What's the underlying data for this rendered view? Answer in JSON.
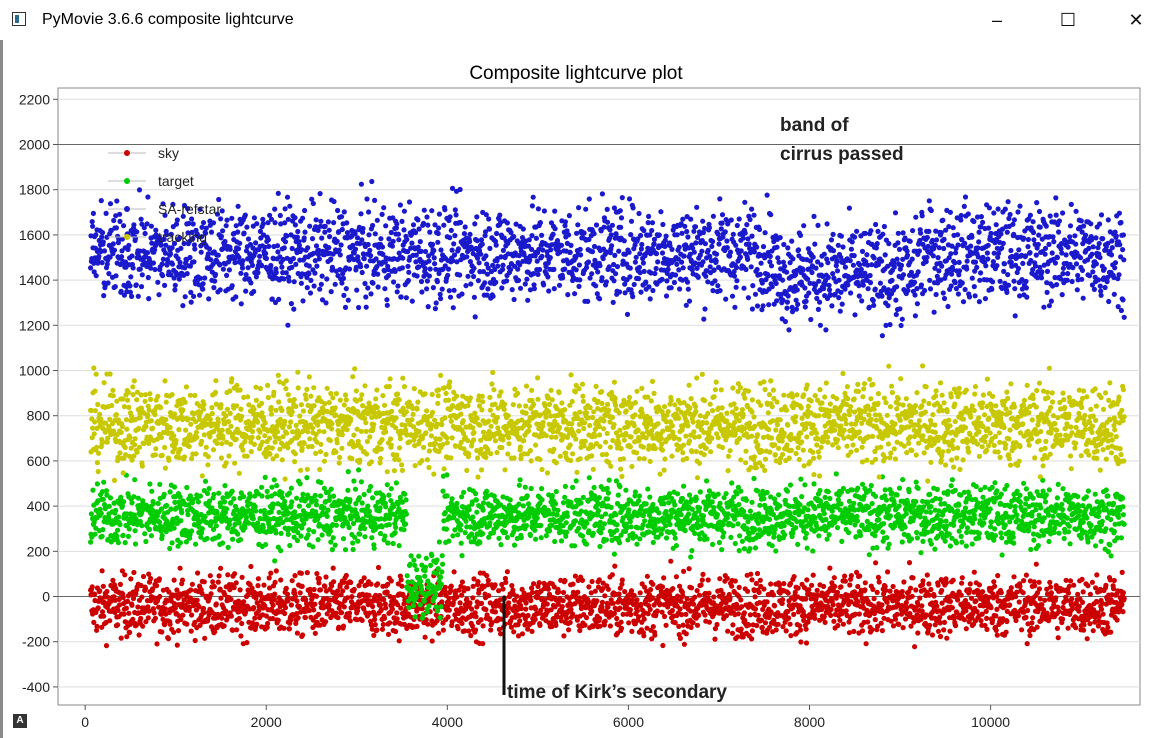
{
  "window": {
    "title": "PyMovie 3.6.6 composite lightcurve",
    "icon": "app-window-icon",
    "minimize_label": "–",
    "maximize_label": "☐",
    "close_label": "✕"
  },
  "corner_badge": "A",
  "chart_data": {
    "type": "scatter",
    "title": "Composite lightcurve plot",
    "xlabel": "",
    "ylabel": "",
    "xlim": [
      -300,
      11650
    ],
    "ylim": [
      -480,
      2250
    ],
    "xticks": [
      0,
      2000,
      4000,
      6000,
      8000,
      10000
    ],
    "yticks": [
      -400,
      -200,
      0,
      200,
      400,
      600,
      800,
      1000,
      1200,
      1400,
      1600,
      1800,
      2000,
      2200
    ],
    "grid": true,
    "legend_position": "top-left",
    "series": [
      {
        "name": "sky",
        "color": "#cc0000",
        "mean": -40,
        "spread": 95,
        "x_range": [
          60,
          11480
        ]
      },
      {
        "name": "target",
        "color": "#00cc00",
        "mean": 360,
        "spread": 95,
        "x_range": [
          60,
          11480
        ]
      },
      {
        "name": "SA-refstar",
        "color": "#1a1acc",
        "mean": 1520,
        "spread": 150,
        "x_range": [
          60,
          11480
        ]
      },
      {
        "name": "tracking",
        "color": "#c8c800",
        "mean": 760,
        "spread": 130,
        "x_range": [
          60,
          11480
        ]
      }
    ],
    "annotations": [
      {
        "text": "band of",
        "color": "#222222"
      },
      {
        "text": "cirrus passed",
        "color": "#222222"
      },
      {
        "text": "time of Kirk’s secondary",
        "color": "#222222"
      }
    ]
  }
}
